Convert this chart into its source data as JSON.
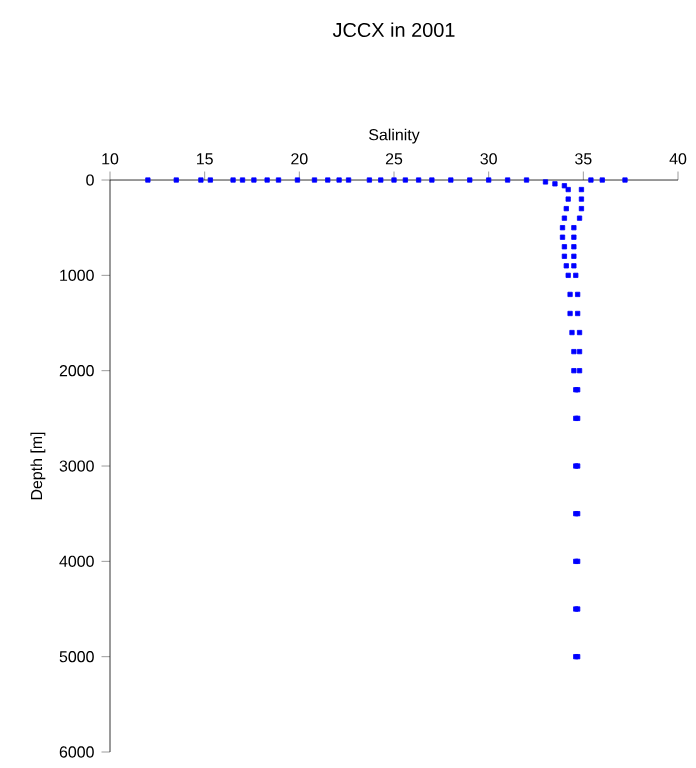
{
  "chart_data": {
    "type": "scatter",
    "title": "JCCX in 2001",
    "xlabel": "Salinity",
    "ylabel": "Depth [m]",
    "xlim": [
      10,
      40
    ],
    "xticks": [
      10,
      15,
      20,
      25,
      30,
      35,
      40
    ],
    "ylim": [
      6000,
      0
    ],
    "yticks": [
      0,
      1000,
      2000,
      3000,
      4000,
      5000,
      6000
    ],
    "marker": "square",
    "grid": false,
    "series": [
      {
        "color": "#0000ff",
        "x": [
          12.0,
          13.5,
          14.8,
          15.3,
          16.5,
          17.0,
          17.6,
          18.3,
          18.9,
          19.9,
          20.8,
          21.5,
          22.1,
          22.6,
          23.7,
          24.3,
          25.0,
          25.6,
          26.3,
          27.0,
          28.0,
          29.0,
          30.0,
          31.0,
          32.0,
          33.0,
          33.5,
          34.0,
          35.4,
          36.0,
          37.2,
          34.2,
          34.9,
          34.2,
          34.9,
          34.1,
          34.9,
          34.0,
          34.8,
          33.9,
          34.5,
          33.9,
          34.5,
          34.0,
          34.5,
          34.0,
          34.5,
          34.1,
          34.5,
          34.2,
          34.6,
          34.3,
          34.7,
          34.3,
          34.7,
          34.4,
          34.8,
          34.5,
          34.8,
          34.5,
          34.8,
          34.6,
          34.7,
          34.6,
          34.7,
          34.6,
          34.7,
          34.6,
          34.7,
          34.6,
          34.7,
          34.6,
          34.7,
          34.6,
          34.7
        ],
        "values": [
          0,
          0,
          0,
          0,
          0,
          0,
          0,
          0,
          0,
          0,
          0,
          0,
          0,
          0,
          0,
          0,
          0,
          0,
          0,
          0,
          0,
          0,
          0,
          0,
          0,
          20,
          40,
          60,
          0,
          0,
          0,
          100,
          100,
          200,
          200,
          300,
          300,
          400,
          400,
          500,
          500,
          600,
          600,
          700,
          700,
          800,
          800,
          900,
          900,
          1000,
          1000,
          1200,
          1200,
          1400,
          1400,
          1600,
          1600,
          1800,
          1800,
          2000,
          2000,
          2200,
          2200,
          2500,
          2500,
          3000,
          3000,
          3500,
          3500,
          4000,
          4000,
          4500,
          4500,
          5000,
          5000
        ]
      }
    ]
  }
}
